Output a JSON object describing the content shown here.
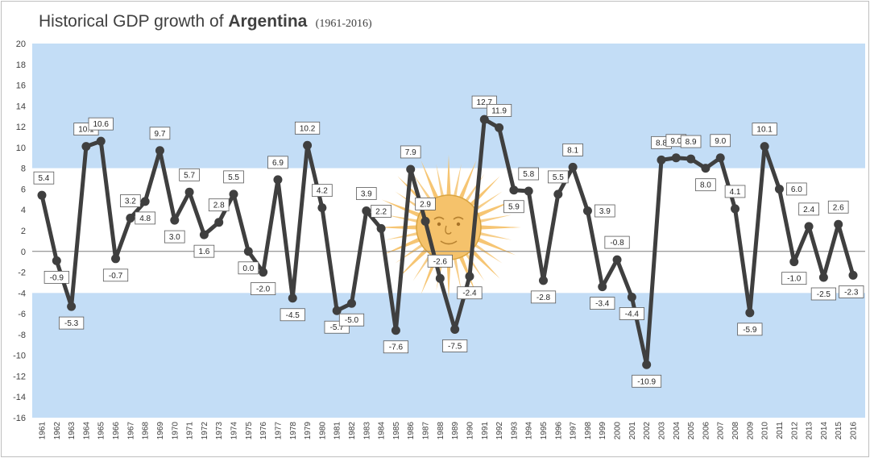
{
  "chart_data": {
    "type": "line",
    "title": {
      "prefix": "Historical GDP growth of ",
      "country": "Argentina",
      "range": "(1961-2016)"
    },
    "xlabel": "",
    "ylabel": "",
    "ylim": [
      -16,
      20
    ],
    "ytick_step": 2,
    "grid": false,
    "legend": "none",
    "colors": {
      "flag_blue": "#c3ddf6",
      "flag_white": "#ffffff",
      "sun": "#f5c26b",
      "line": "#3f3f3f",
      "marker": "#3f3f3f",
      "zero_line": "#7f7f7f"
    },
    "band_limits": {
      "blue_top_from": 8,
      "blue_bottom_below": -4
    },
    "x": [
      "1961",
      "1962",
      "1963",
      "1964",
      "1965",
      "1966",
      "1967",
      "1968",
      "1969",
      "1970",
      "1971",
      "1972",
      "1973",
      "1974",
      "1975",
      "1976",
      "1977",
      "1978",
      "1979",
      "1980",
      "1981",
      "1982",
      "1983",
      "1984",
      "1985",
      "1986",
      "1987",
      "1988",
      "1989",
      "1990",
      "1991",
      "1992",
      "1993",
      "1994",
      "1995",
      "1996",
      "1997",
      "1998",
      "1999",
      "2000",
      "2001",
      "2002",
      "2003",
      "2004",
      "2005",
      "2006",
      "2007",
      "2008",
      "2009",
      "2010",
      "2011",
      "2012",
      "2013",
      "2014",
      "2015",
      "2016"
    ],
    "series": [
      {
        "name": "GDP growth (%)",
        "values": [
          5.4,
          -0.9,
          -5.3,
          10.1,
          10.6,
          -0.7,
          3.2,
          4.8,
          9.7,
          3.0,
          5.7,
          1.6,
          2.8,
          5.5,
          0.0,
          -2.0,
          6.9,
          -4.5,
          10.2,
          4.2,
          -5.7,
          -5.0,
          3.9,
          2.2,
          -7.6,
          7.9,
          2.9,
          -2.6,
          -7.5,
          -2.4,
          12.7,
          11.9,
          5.9,
          5.8,
          -2.8,
          5.5,
          8.1,
          3.9,
          -3.4,
          -0.8,
          -4.4,
          -10.9,
          8.8,
          9.0,
          8.9,
          8.0,
          9.0,
          4.1,
          -5.9,
          10.1,
          6.0,
          -1.0,
          2.4,
          -2.5,
          2.6,
          -2.3
        ],
        "labels": [
          "5.4",
          "-0.9",
          "-5.3",
          "10.1",
          "10.6",
          "-0.7",
          "3.2",
          "4.8",
          "9.7",
          "3.0",
          "5.7",
          "1.6",
          "2.8",
          "5.5",
          "0.0",
          "-2.0",
          "6.9",
          "-4.5",
          "10.2",
          "4.2",
          "-5.7",
          "-5.0",
          "3.9",
          "2.2",
          "-7.6",
          "7.9",
          "2.9",
          "-2.6",
          "-7.5",
          "-2.4",
          "12.7",
          "11.9",
          "5.9",
          "5.8",
          "-2.8",
          "5.5",
          "8.1",
          "3.9",
          "-3.4",
          "-0.8",
          "-4.4",
          "-10.9",
          "8.8",
          "9.0",
          "8.9",
          "8.0",
          "9.0",
          "4.1",
          "-5.9",
          "10.1",
          "6.0",
          "-1.0",
          "2.4",
          "-2.5",
          "2.6",
          "-2.3"
        ],
        "label_positions": [
          "above",
          "below",
          "below",
          "above",
          "above",
          "below",
          "above",
          "below",
          "above",
          "below",
          "above",
          "below",
          "above",
          "above",
          "below",
          "below",
          "above",
          "below",
          "above",
          "above",
          "below",
          "below",
          "above",
          "above",
          "below",
          "above",
          "above",
          "above",
          "below",
          "below",
          "above",
          "above",
          "below",
          "above",
          "below",
          "above",
          "above",
          "right",
          "below",
          "above",
          "below",
          "below",
          "above",
          "above",
          "above",
          "below",
          "above",
          "above",
          "below",
          "above",
          "right",
          "below",
          "above",
          "below",
          "above",
          "below"
        ]
      }
    ]
  }
}
